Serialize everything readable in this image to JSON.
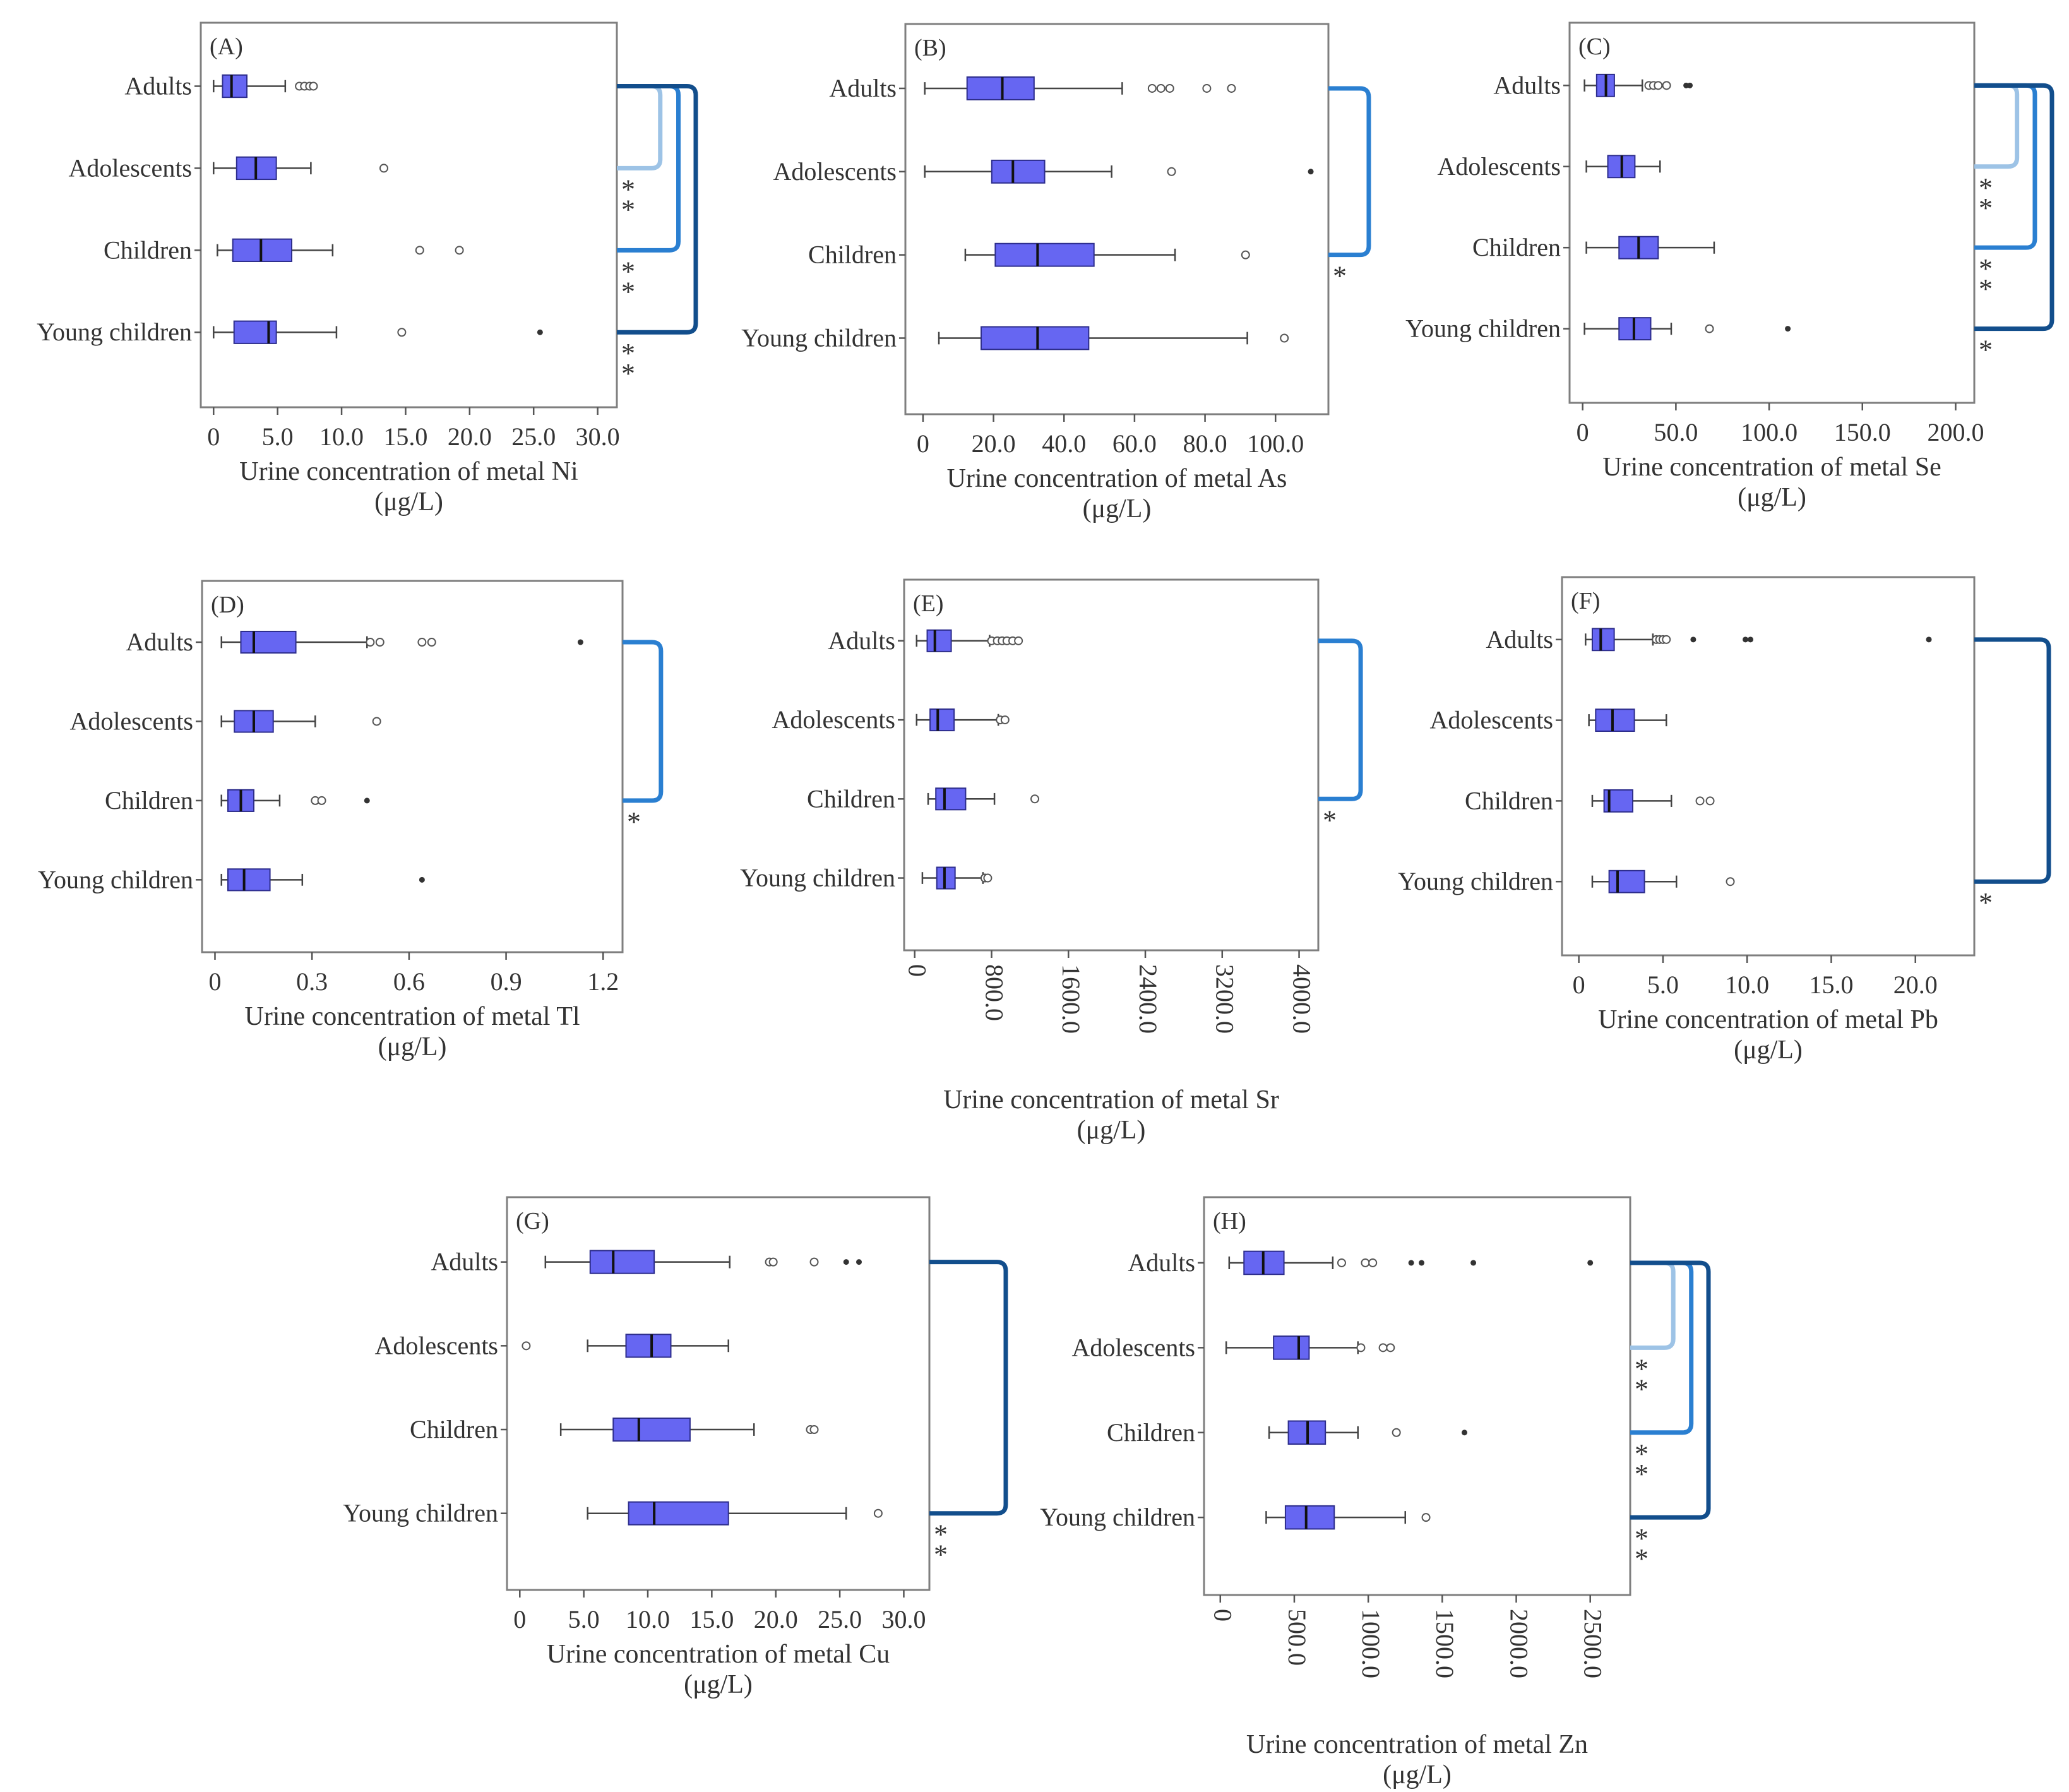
{
  "figure": {
    "box_color": "#6666f2",
    "box_edge_color": "#2d2d8c",
    "colors": {
      "light": "#9dc3e6",
      "medium": "#2a7fd1",
      "dark": "#124e8c"
    }
  },
  "chart_data": [
    {
      "type": "boxplot",
      "panel": "(A)",
      "xlabel": "Urine concentration of metal Ni",
      "unit": "(μg/L)",
      "categories": [
        "Adults",
        "Adolescents",
        "Children",
        "Young children"
      ],
      "xlim": [
        -1,
        31.5
      ],
      "ticks": [
        0,
        5,
        10,
        15,
        20,
        25,
        30
      ],
      "tick_labels": [
        "0",
        "5.0",
        "10.0",
        "15.0",
        "20.0",
        "25.0",
        "30.0"
      ],
      "rotate_ticks": false,
      "boxes": [
        {
          "min": 0,
          "q1": 0.7,
          "median": 1.4,
          "q3": 2.6,
          "max": 5.6,
          "outliers": [
            6.7,
            7.1,
            7.5,
            7.8
          ],
          "extremes": []
        },
        {
          "min": 0,
          "q1": 1.8,
          "median": 3.3,
          "q3": 4.9,
          "max": 7.6,
          "outliers": [
            13.3
          ],
          "extremes": []
        },
        {
          "min": 0.3,
          "q1": 1.5,
          "median": 3.7,
          "q3": 6.1,
          "max": 9.3,
          "outliers": [
            16.1,
            19.2
          ],
          "extremes": []
        },
        {
          "min": 0,
          "q1": 1.6,
          "median": 4.3,
          "q3": 4.9,
          "max": 9.6,
          "outliers": [
            14.7
          ],
          "extremes": [
            25.5
          ]
        }
      ],
      "significance": [
        {
          "from": 0,
          "to": 1,
          "color": "light",
          "label": "**"
        },
        {
          "from": 0,
          "to": 2,
          "color": "medium",
          "label": "**"
        },
        {
          "from": 0,
          "to": 3,
          "color": "dark",
          "label": "**"
        }
      ]
    },
    {
      "type": "boxplot",
      "panel": "(B)",
      "xlabel": "Urine concentration of metal As",
      "unit": "(μg/L)",
      "categories": [
        "Adults",
        "Adolescents",
        "Children",
        "Young children"
      ],
      "xlim": [
        -5,
        115
      ],
      "ticks": [
        0,
        20,
        40,
        60,
        80,
        100
      ],
      "tick_labels": [
        "0",
        "20.0",
        "40.0",
        "60.0",
        "80.0",
        "100.0"
      ],
      "rotate_ticks": false,
      "boxes": [
        {
          "min": 0.5,
          "q1": 12.5,
          "median": 22.5,
          "q3": 31.5,
          "max": 56.5,
          "outliers": [
            65,
            67.5,
            70,
            80.5,
            87.5
          ],
          "extremes": []
        },
        {
          "min": 0.5,
          "q1": 19.5,
          "median": 25.5,
          "q3": 34.5,
          "max": 53.5,
          "outliers": [
            70.5
          ],
          "extremes": [
            110
          ]
        },
        {
          "min": 12,
          "q1": 20.5,
          "median": 32.5,
          "q3": 48.5,
          "max": 71.5,
          "outliers": [
            91.5
          ],
          "extremes": []
        },
        {
          "min": 4.5,
          "q1": 16.5,
          "median": 32.5,
          "q3": 47,
          "max": 92,
          "outliers": [
            102.5
          ],
          "extremes": []
        }
      ],
      "significance": [
        {
          "from": 0,
          "to": 2,
          "color": "medium",
          "label": "*"
        }
      ]
    },
    {
      "type": "boxplot",
      "panel": "(C)",
      "xlabel": "Urine concentration of metal Se",
      "unit": "(μg/L)",
      "categories": [
        "Adults",
        "Adolescents",
        "Children",
        "Young children"
      ],
      "xlim": [
        -7,
        210
      ],
      "ticks": [
        0,
        50,
        100,
        150,
        200
      ],
      "tick_labels": [
        "0",
        "50.0",
        "100.0",
        "150.0",
        "200.0"
      ],
      "rotate_ticks": false,
      "boxes": [
        {
          "min": 1,
          "q1": 7.5,
          "median": 12.5,
          "q3": 17,
          "max": 32,
          "outliers": [
            35.5,
            38,
            40.5,
            45
          ],
          "extremes": [
            55.5,
            57.5
          ]
        },
        {
          "min": 2,
          "q1": 13.5,
          "median": 21,
          "q3": 28,
          "max": 41.5,
          "outliers": [],
          "extremes": []
        },
        {
          "min": 2,
          "q1": 19.5,
          "median": 30,
          "q3": 40.5,
          "max": 70.5,
          "outliers": [],
          "extremes": []
        },
        {
          "min": 1,
          "q1": 19.5,
          "median": 27.5,
          "q3": 36.5,
          "max": 47.5,
          "outliers": [
            68
          ],
          "extremes": [
            110
          ]
        }
      ],
      "significance": [
        {
          "from": 0,
          "to": 1,
          "color": "light",
          "label": "**"
        },
        {
          "from": 0,
          "to": 2,
          "color": "medium",
          "label": "**"
        },
        {
          "from": 0,
          "to": 3,
          "color": "dark",
          "label": "*"
        }
      ]
    },
    {
      "type": "boxplot",
      "panel": "(D)",
      "xlabel": "Urine concentration of metal Tl",
      "unit": "(μg/L)",
      "categories": [
        "Adults",
        "Adolescents",
        "Children",
        "Young children"
      ],
      "xlim": [
        -0.04,
        1.26
      ],
      "ticks": [
        0,
        0.3,
        0.6,
        0.9,
        1.2
      ],
      "tick_labels": [
        "0",
        "0.3",
        "0.6",
        "0.9",
        "1.2"
      ],
      "rotate_ticks": false,
      "boxes": [
        {
          "min": 0.02,
          "q1": 0.08,
          "median": 0.12,
          "q3": 0.25,
          "max": 0.47,
          "outliers": [
            0.48,
            0.51,
            0.64,
            0.67
          ],
          "extremes": [
            1.13
          ]
        },
        {
          "min": 0.02,
          "q1": 0.06,
          "median": 0.12,
          "q3": 0.18,
          "max": 0.31,
          "outliers": [
            0.5
          ],
          "extremes": []
        },
        {
          "min": 0.02,
          "q1": 0.04,
          "median": 0.08,
          "q3": 0.12,
          "max": 0.2,
          "outliers": [
            0.31,
            0.33
          ],
          "extremes": [
            0.47
          ]
        },
        {
          "min": 0.02,
          "q1": 0.04,
          "median": 0.09,
          "q3": 0.17,
          "max": 0.27,
          "outliers": [],
          "extremes": [
            0.64
          ]
        }
      ],
      "significance": [
        {
          "from": 0,
          "to": 2,
          "color": "medium",
          "label": "*"
        }
      ]
    },
    {
      "type": "boxplot",
      "panel": "(E)",
      "xlabel": "Urine concentration of metal Sr",
      "unit": "(μg/L)",
      "categories": [
        "Adults",
        "Adolescents",
        "Children",
        "Young children"
      ],
      "xlim": [
        -110,
        4200
      ],
      "ticks": [
        0,
        800,
        1600,
        2400,
        3200,
        4000
      ],
      "tick_labels": [
        "0",
        "800.0",
        "1600.0",
        "2400.0",
        "3200.0",
        "4000.0"
      ],
      "rotate_ticks": true,
      "boxes": [
        {
          "min": 20,
          "q1": 130,
          "median": 210,
          "q3": 380,
          "max": 780,
          "outliers": [
            800,
            860,
            910,
            960,
            1020,
            1080
          ],
          "extremes": []
        },
        {
          "min": 20,
          "q1": 160,
          "median": 240,
          "q3": 410,
          "max": 870,
          "outliers": [
            890,
            940
          ],
          "extremes": []
        },
        {
          "min": 140,
          "q1": 220,
          "median": 310,
          "q3": 530,
          "max": 830,
          "outliers": [
            1250
          ],
          "extremes": []
        },
        {
          "min": 80,
          "q1": 230,
          "median": 310,
          "q3": 420,
          "max": 710,
          "outliers": [
            730,
            760
          ],
          "extremes": []
        }
      ],
      "significance": [
        {
          "from": 0,
          "to": 2,
          "color": "medium",
          "label": "*"
        }
      ]
    },
    {
      "type": "boxplot",
      "panel": "(F)",
      "xlabel": "Urine concentration of metal Pb",
      "unit": "(μg/L)",
      "categories": [
        "Adults",
        "Adolescents",
        "Children",
        "Young children"
      ],
      "xlim": [
        -1,
        23.5
      ],
      "ticks": [
        0,
        5,
        10,
        15,
        20
      ],
      "tick_labels": [
        "0",
        "5.0",
        "10.0",
        "15.0",
        "20.0"
      ],
      "rotate_ticks": false,
      "boxes": [
        {
          "min": 0.4,
          "q1": 0.8,
          "median": 1.3,
          "q3": 2.1,
          "max": 4.4,
          "outliers": [
            4.6,
            4.8,
            5.0,
            5.2
          ],
          "extremes": [
            6.8,
            9.9,
            10.2,
            20.8
          ]
        },
        {
          "min": 0.6,
          "q1": 1.0,
          "median": 2.0,
          "q3": 3.3,
          "max": 5.2,
          "outliers": [],
          "extremes": []
        },
        {
          "min": 0.8,
          "q1": 1.5,
          "median": 1.8,
          "q3": 3.2,
          "max": 5.5,
          "outliers": [
            7.2,
            7.8
          ],
          "extremes": []
        },
        {
          "min": 0.8,
          "q1": 1.8,
          "median": 2.3,
          "q3": 3.9,
          "max": 5.8,
          "outliers": [
            9.0
          ],
          "extremes": []
        }
      ],
      "significance": [
        {
          "from": 0,
          "to": 3,
          "color": "dark",
          "label": "*"
        }
      ]
    },
    {
      "type": "boxplot",
      "panel": "(G)",
      "xlabel": "Urine concentration of metal Cu",
      "unit": "(μg/L)",
      "categories": [
        "Adults",
        "Adolescents",
        "Children",
        "Young children"
      ],
      "xlim": [
        -1,
        32
      ],
      "ticks": [
        0,
        5,
        10,
        15,
        20,
        25,
        30
      ],
      "tick_labels": [
        "0",
        "5.0",
        "10.0",
        "15.0",
        "20.0",
        "25.0",
        "30.0"
      ],
      "rotate_ticks": false,
      "boxes": [
        {
          "min": 2,
          "q1": 5.5,
          "median": 7.3,
          "q3": 10.5,
          "max": 16.4,
          "outliers": [
            19.5,
            19.8,
            23
          ],
          "extremes": [
            25.5,
            26.5
          ]
        },
        {
          "min": 5.3,
          "q1": 8.3,
          "median": 10.3,
          "q3": 11.8,
          "max": 16.3,
          "outliers": [
            0.5
          ],
          "extremes": []
        },
        {
          "min": 3.2,
          "q1": 7.3,
          "median": 9.3,
          "q3": 13.3,
          "max": 18.3,
          "outliers": [
            22.7,
            23
          ],
          "extremes": []
        },
        {
          "min": 5.3,
          "q1": 8.5,
          "median": 10.5,
          "q3": 16.3,
          "max": 25.5,
          "outliers": [
            28
          ],
          "extremes": []
        }
      ],
      "significance": [
        {
          "from": 0,
          "to": 3,
          "color": "dark",
          "label": "**"
        }
      ]
    },
    {
      "type": "boxplot",
      "panel": "(H)",
      "xlabel": "Urine concentration of metal Zn",
      "unit": "(μg/L)",
      "categories": [
        "Adults",
        "Adolescents",
        "Children",
        "Young children"
      ],
      "xlim": [
        -110,
        2770
      ],
      "ticks": [
        0,
        500,
        1000,
        1500,
        2000,
        2500
      ],
      "tick_labels": [
        "0",
        "500.0",
        "1000.0",
        "1500.0",
        "2000.0",
        "2500.0"
      ],
      "rotate_ticks": true,
      "boxes": [
        {
          "min": 60,
          "q1": 160,
          "median": 290,
          "q3": 430,
          "max": 760,
          "outliers": [
            820,
            980,
            1030
          ],
          "extremes": [
            1290,
            1360,
            1710,
            2500
          ]
        },
        {
          "min": 40,
          "q1": 360,
          "median": 530,
          "q3": 600,
          "max": 930,
          "outliers": [
            950,
            1100,
            1150
          ],
          "extremes": []
        },
        {
          "min": 330,
          "q1": 460,
          "median": 590,
          "q3": 710,
          "max": 930,
          "outliers": [
            1190
          ],
          "extremes": [
            1650
          ]
        },
        {
          "min": 310,
          "q1": 440,
          "median": 580,
          "q3": 770,
          "max": 1250,
          "outliers": [
            1390
          ],
          "extremes": []
        }
      ],
      "significance": [
        {
          "from": 0,
          "to": 1,
          "color": "light",
          "label": "**"
        },
        {
          "from": 0,
          "to": 2,
          "color": "medium",
          "label": "**"
        },
        {
          "from": 0,
          "to": 3,
          "color": "dark",
          "label": "**"
        }
      ]
    }
  ]
}
